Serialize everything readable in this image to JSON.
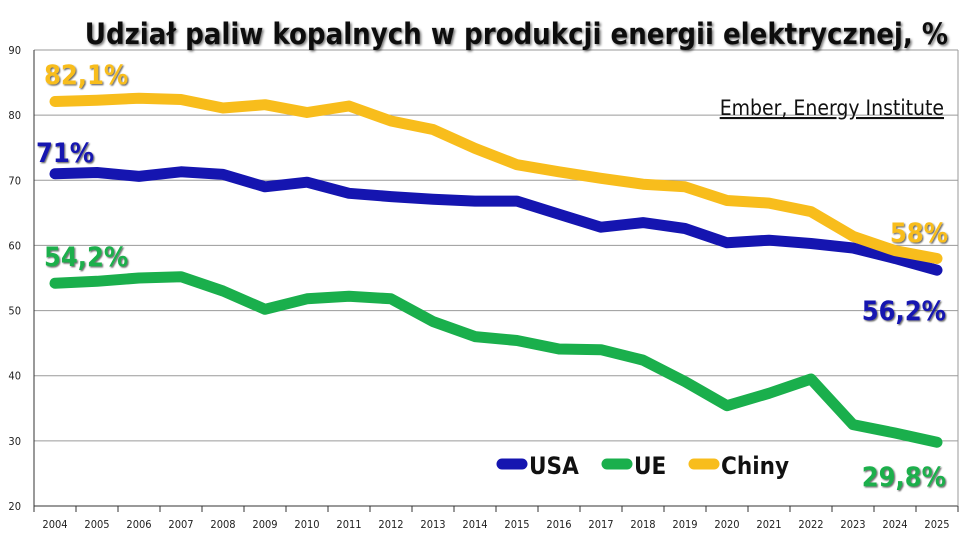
{
  "chart_data": {
    "type": "line",
    "title": "Udział paliw kopalnych w produkcji energii elektrycznej, %",
    "source": "Ember, Energy Institute",
    "xlabel": "",
    "ylabel": "",
    "ylim": [
      20,
      90
    ],
    "yticks": [
      20,
      30,
      40,
      50,
      60,
      70,
      80,
      90
    ],
    "grid": true,
    "legend_position": "bottom-right",
    "categories": [
      "2004",
      "2005",
      "2006",
      "2007",
      "2008",
      "2009",
      "2010",
      "2011",
      "2012",
      "2013",
      "2014",
      "2015",
      "2016",
      "2017",
      "2018",
      "2019",
      "2020",
      "2021",
      "2022",
      "2023",
      "2024",
      "2025"
    ],
    "series": [
      {
        "name": "USA",
        "color": "#1515b0",
        "values": [
          71.0,
          71.2,
          70.6,
          71.3,
          70.9,
          69.0,
          69.7,
          68.0,
          67.5,
          67.1,
          66.8,
          66.8,
          64.8,
          62.8,
          63.5,
          62.6,
          60.4,
          60.8,
          60.3,
          59.6,
          58.0,
          56.2
        ],
        "start_label": "71%",
        "end_label": "56,2%"
      },
      {
        "name": "UE",
        "color": "#1aaf4c",
        "values": [
          54.2,
          54.5,
          55.0,
          55.2,
          53.0,
          50.2,
          51.8,
          52.2,
          51.8,
          48.3,
          46.0,
          45.4,
          44.1,
          44.0,
          42.4,
          39.1,
          35.4,
          37.3,
          39.5,
          32.5,
          31.2,
          29.8
        ],
        "start_label": "54,2%",
        "end_label": "29,8%"
      },
      {
        "name": "Chiny",
        "color": "#f8bd1c",
        "values": [
          82.1,
          82.3,
          82.6,
          82.4,
          81.1,
          81.6,
          80.4,
          81.4,
          79.1,
          77.8,
          74.9,
          72.4,
          71.3,
          70.3,
          69.4,
          69.0,
          66.9,
          66.5,
          65.2,
          61.4,
          59.2,
          58.0
        ],
        "start_label": "82,1%",
        "end_label": "58%"
      }
    ]
  }
}
